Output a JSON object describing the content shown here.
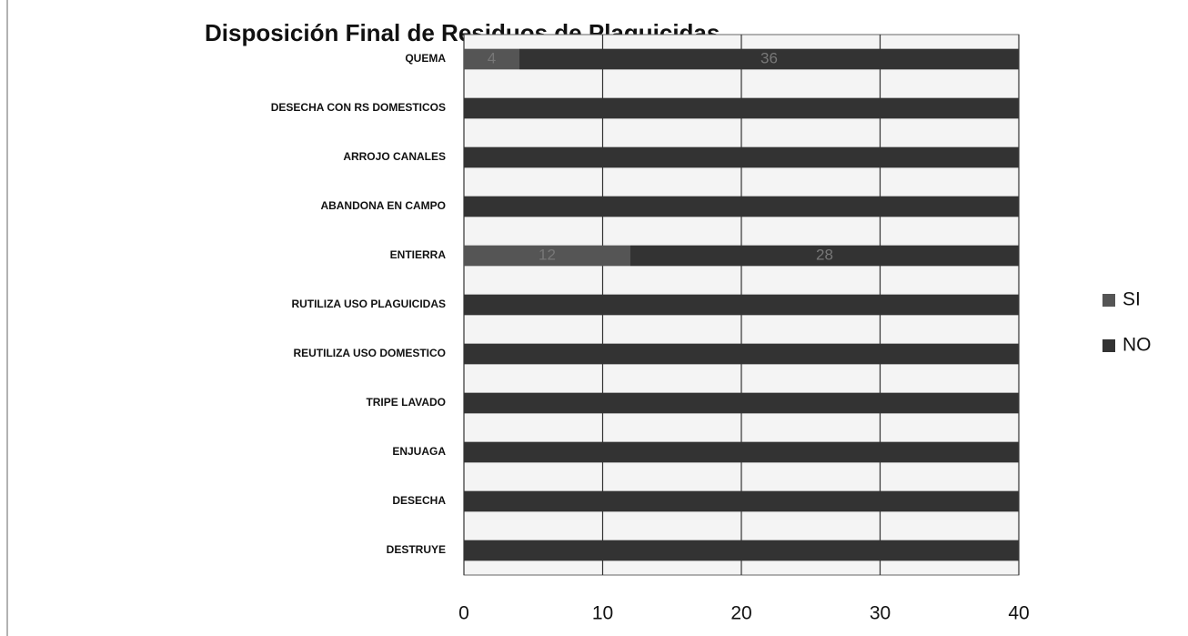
{
  "chart_data": {
    "type": "stacked-barh",
    "title": "Disposición Final de Residuos de Plaguicidas",
    "categories": [
      "QUEMA",
      "DESECHA CON RS DOMESTICOS",
      "ARROJO CANALES",
      "ABANDONA EN CAMPO",
      "ENTIERRA",
      "RUTILIZA USO PLAGUICIDAS",
      "REUTILIZA USO DOMESTICO",
      "TRIPE LAVADO",
      "ENJUAGA",
      "DESECHA",
      "DESTRUYE"
    ],
    "series": [
      {
        "name": "SI",
        "color": "#555555",
        "values": [
          4,
          0,
          0,
          0,
          12,
          0,
          0,
          0,
          0,
          0,
          0
        ],
        "value_labels": [
          "4",
          null,
          null,
          null,
          "12",
          null,
          null,
          null,
          null,
          null,
          null
        ]
      },
      {
        "name": "NO",
        "color": "#333333",
        "values": [
          36,
          40,
          40,
          40,
          28,
          40,
          40,
          40,
          40,
          40,
          40
        ],
        "value_labels": [
          "36",
          null,
          null,
          null,
          "28",
          null,
          null,
          null,
          null,
          null,
          null
        ]
      }
    ],
    "xlim": [
      0,
      40
    ],
    "xticks": [
      0,
      10,
      20,
      30,
      40
    ],
    "grid": true,
    "legend": "right"
  }
}
